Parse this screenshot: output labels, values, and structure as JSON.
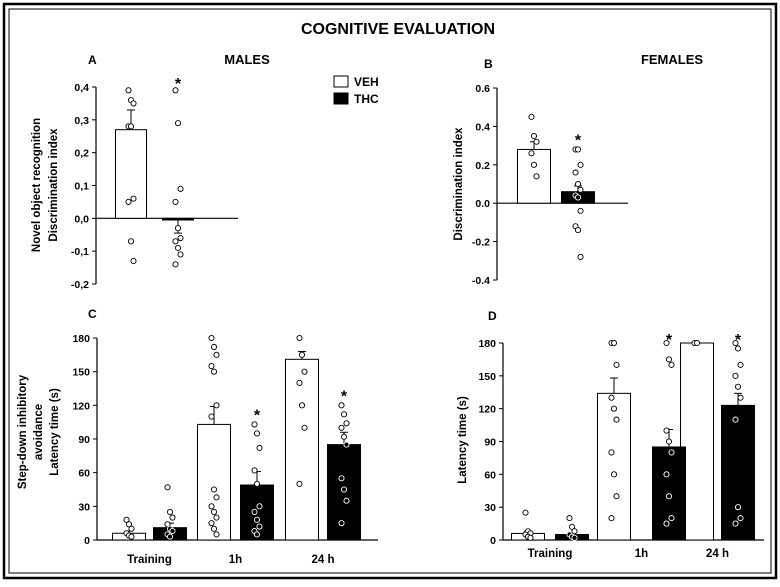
{
  "title": "COGNITIVE EVALUATION",
  "headers": {
    "males": "MALES",
    "females": "FEMALES"
  },
  "legend": {
    "entries": [
      "VEH",
      "THC"
    ],
    "colors": {
      "VEH": "#ffffff",
      "THC": "#000000"
    }
  },
  "chart_data": [
    {
      "panel": "A",
      "type": "bar",
      "group": "MALES",
      "ylabel": [
        "Novel object recognition",
        "Discrimination index"
      ],
      "ylim": [
        -0.2,
        0.4
      ],
      "yticks": [
        -0.2,
        -0.1,
        0.0,
        0.1,
        0.2,
        0.3,
        0.4
      ],
      "ytick_labels": [
        "-0,2",
        "-0,1",
        "0,0",
        "0,1",
        "0,2",
        "0,3",
        "0,4"
      ],
      "categories": [
        ""
      ],
      "series": [
        {
          "name": "VEH",
          "values": [
            0.27
          ],
          "error": [
            0.06
          ],
          "points": [
            [
              0.39,
              0.36,
              0.35,
              0.28,
              0.28,
              0.06,
              0.05,
              -0.07,
              -0.13
            ]
          ],
          "significant": [
            false
          ]
        },
        {
          "name": "THC",
          "values": [
            -0.005
          ],
          "error": [
            0.04
          ],
          "points": [
            [
              0.39,
              0.29,
              0.09,
              0.05,
              -0.03,
              -0.06,
              -0.07,
              -0.09,
              -0.11,
              -0.14
            ]
          ],
          "significant": [
            true
          ]
        }
      ]
    },
    {
      "panel": "B",
      "type": "bar",
      "group": "FEMALES",
      "ylabel": [
        "Discrimination index"
      ],
      "ylim": [
        -0.4,
        0.6
      ],
      "yticks": [
        -0.4,
        -0.2,
        0.0,
        0.2,
        0.4,
        0.6
      ],
      "ytick_labels": [
        "-0.4",
        "-0.2",
        "0.0",
        "0.2",
        "0.4",
        "0.6"
      ],
      "categories": [
        ""
      ],
      "series": [
        {
          "name": "VEH",
          "values": [
            0.28
          ],
          "error": [
            0.04
          ],
          "points": [
            [
              0.45,
              0.35,
              0.32,
              0.26,
              0.2,
              0.14
            ]
          ],
          "significant": [
            false
          ]
        },
        {
          "name": "THC",
          "values": [
            0.06
          ],
          "error": [
            0.03
          ],
          "points": [
            [
              0.28,
              0.28,
              0.2,
              0.16,
              0.1,
              0.07,
              0.04,
              0.03,
              -0.04,
              -0.12,
              -0.14,
              -0.28
            ]
          ],
          "significant": [
            true
          ]
        }
      ]
    },
    {
      "panel": "C",
      "type": "bar",
      "group": "MALES",
      "ylabel": [
        "Step-down inhibitory",
        "avoidance",
        "Latency time (s)"
      ],
      "ylim": [
        0,
        180
      ],
      "yticks": [
        0,
        30,
        60,
        90,
        120,
        150,
        180
      ],
      "ytick_labels": [
        "0",
        "30",
        "60",
        "90",
        "120",
        "150",
        "180"
      ],
      "categories": [
        "Training",
        "1h",
        "24 h"
      ],
      "series": [
        {
          "name": "VEH",
          "values": [
            6,
            103,
            161
          ],
          "error": [
            2,
            16,
            7
          ],
          "points": [
            [
              18,
              14,
              10,
              6,
              4,
              3
            ],
            [
              180,
              172,
              165,
              155,
              150,
              120,
              110,
              45,
              38,
              30,
              25,
              20,
              15,
              10,
              5
            ],
            [
              180,
              165,
              150,
              140,
              120,
              100,
              50
            ]
          ],
          "significant": [
            false,
            false,
            false
          ]
        },
        {
          "name": "THC",
          "values": [
            11,
            49,
            85
          ],
          "error": [
            4,
            12,
            11
          ],
          "points": [
            [
              47,
              25,
              20,
              14,
              10,
              8,
              5,
              3
            ],
            [
              103,
              95,
              82,
              62,
              50,
              30,
              25,
              18,
              12,
              8,
              5
            ],
            [
              120,
              112,
              104,
              100,
              92,
              85,
              55,
              45,
              35,
              15
            ]
          ],
          "significant": [
            false,
            true,
            true
          ]
        }
      ]
    },
    {
      "panel": "D",
      "type": "bar",
      "group": "FEMALES",
      "ylabel": [
        "Latency time (s)"
      ],
      "ylim": [
        0,
        180
      ],
      "yticks": [
        0,
        30,
        60,
        90,
        120,
        150,
        180
      ],
      "ytick_labels": [
        "0",
        "30",
        "60",
        "90",
        "120",
        "150",
        "180"
      ],
      "categories": [
        "Training",
        "1h",
        "24 h"
      ],
      "series": [
        {
          "name": "VEH",
          "values": [
            6,
            134,
            180
          ],
          "error": [
            2,
            14,
            0
          ],
          "points": [
            [
              25,
              8,
              6,
              5,
              3,
              2
            ],
            [
              180,
              180,
              160,
              130,
              120,
              110,
              80,
              60,
              40,
              20
            ],
            [
              180,
              180
            ]
          ],
          "significant": [
            false,
            false,
            false
          ]
        },
        {
          "name": "THC",
          "values": [
            5,
            85,
            123
          ],
          "error": [
            2,
            16,
            11
          ],
          "points": [
            [
              20,
              12,
              8,
              5,
              3,
              2
            ],
            [
              180,
              165,
              160,
              100,
              90,
              80,
              60,
              40,
              20,
              15
            ],
            [
              180,
              175,
              160,
              150,
              140,
              130,
              110,
              30,
              20,
              15
            ]
          ],
          "significant": [
            false,
            true,
            true
          ]
        }
      ]
    }
  ]
}
